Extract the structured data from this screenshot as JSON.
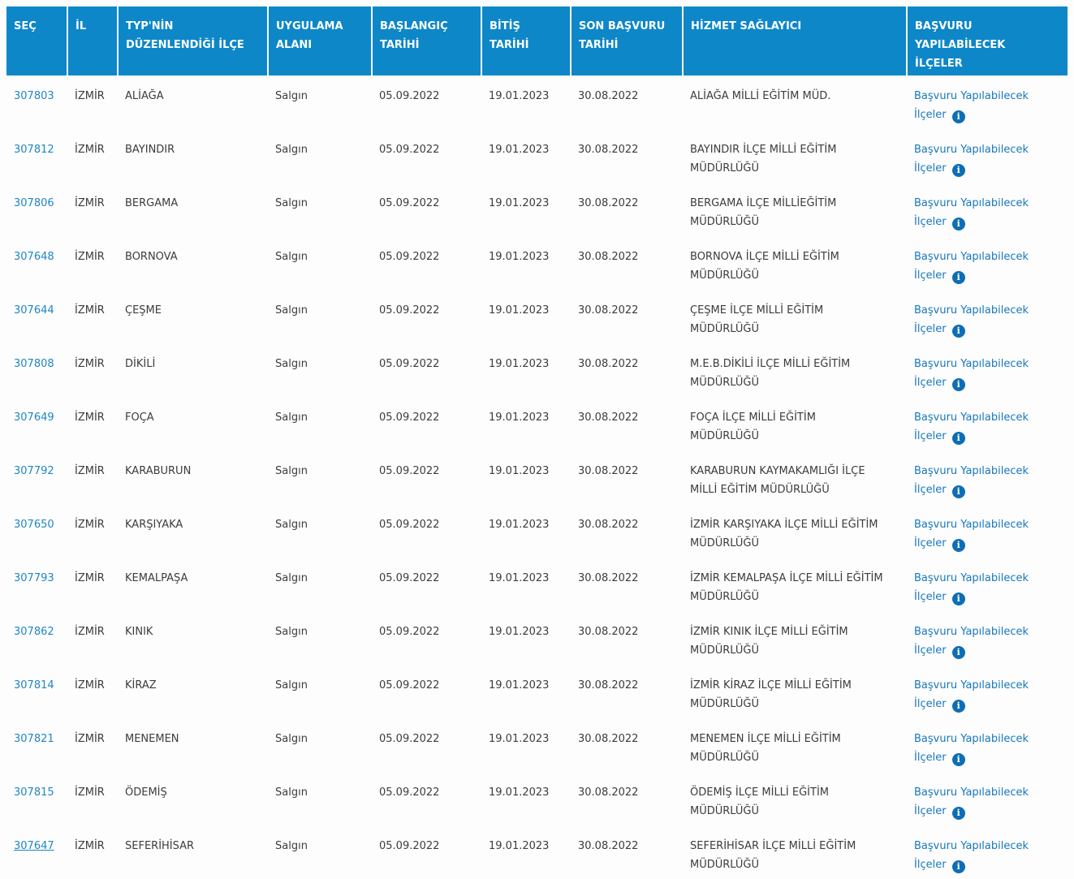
{
  "colors": {
    "header_bg": "#0d87c8",
    "header_text": "#ffffff",
    "body_text": "#3c3c3c",
    "id_link": "#1f86c5",
    "apply_link": "#1878ba",
    "info_icon_bg": "#0d6eb5"
  },
  "table": {
    "headers": [
      "SEÇ",
      "İL",
      "TYP'NİN\nDÜZENLENDİĞİ İLÇE",
      "UYGULAMA\nALANI",
      "BAŞLANGIÇ\nTARİHİ",
      "BİTİŞ\nTARİHİ",
      "SON BAŞVURU\nTARİHİ",
      "HİZMET SAĞLAYICI",
      "BAŞVURU\nYAPILABİLECEK\nİLÇELER"
    ],
    "link_label": "Başvuru Yapılabilecek İlçeler",
    "info_icon_glyph": "i",
    "rows": [
      {
        "id": "307803",
        "il": "İZMİR",
        "ilce": "ALİAĞA",
        "alan": "Salgın",
        "baslangic": "05.09.2022",
        "bitis": "19.01.2023",
        "son_basvuru": "30.08.2022",
        "saglayici": "ALİAĞA MİLLİ EĞİTİM MÜD.",
        "underlined": false
      },
      {
        "id": "307812",
        "il": "İZMİR",
        "ilce": "BAYINDIR",
        "alan": "Salgın",
        "baslangic": "05.09.2022",
        "bitis": "19.01.2023",
        "son_basvuru": "30.08.2022",
        "saglayici": "BAYINDIR İLÇE MİLLİ EĞİTİM MÜDÜRLÜĞÜ",
        "underlined": false
      },
      {
        "id": "307806",
        "il": "İZMİR",
        "ilce": "BERGAMA",
        "alan": "Salgın",
        "baslangic": "05.09.2022",
        "bitis": "19.01.2023",
        "son_basvuru": "30.08.2022",
        "saglayici": "BERGAMA İLÇE MİLLİEĞİTİM MÜDÜRLÜĞÜ",
        "underlined": false
      },
      {
        "id": "307648",
        "il": "İZMİR",
        "ilce": "BORNOVA",
        "alan": "Salgın",
        "baslangic": "05.09.2022",
        "bitis": "19.01.2023",
        "son_basvuru": "30.08.2022",
        "saglayici": "BORNOVA İLÇE MİLLİ EĞİTİM MÜDÜRLÜĞÜ",
        "underlined": false
      },
      {
        "id": "307644",
        "il": "İZMİR",
        "ilce": "ÇEŞME",
        "alan": "Salgın",
        "baslangic": "05.09.2022",
        "bitis": "19.01.2023",
        "son_basvuru": "30.08.2022",
        "saglayici": "ÇEŞME İLÇE MİLLİ EĞİTİM MÜDÜRLÜĞÜ",
        "underlined": false
      },
      {
        "id": "307808",
        "il": "İZMİR",
        "ilce": "DİKİLİ",
        "alan": "Salgın",
        "baslangic": "05.09.2022",
        "bitis": "19.01.2023",
        "son_basvuru": "30.08.2022",
        "saglayici": "M.E.B.DİKİLİ İLÇE MİLLİ EĞİTİM MÜDÜRLÜĞÜ",
        "underlined": false
      },
      {
        "id": "307649",
        "il": "İZMİR",
        "ilce": "FOÇA",
        "alan": "Salgın",
        "baslangic": "05.09.2022",
        "bitis": "19.01.2023",
        "son_basvuru": "30.08.2022",
        "saglayici": "FOÇA İLÇE MİLLİ EĞİTİM MÜDÜRLÜĞÜ",
        "underlined": false
      },
      {
        "id": "307792",
        "il": "İZMİR",
        "ilce": "KARABURUN",
        "alan": "Salgın",
        "baslangic": "05.09.2022",
        "bitis": "19.01.2023",
        "son_basvuru": "30.08.2022",
        "saglayici": "KARABURUN KAYMAKAMLIĞI İLÇE MİLLİ EĞİTİM MÜDÜRLÜĞÜ",
        "underlined": false
      },
      {
        "id": "307650",
        "il": "İZMİR",
        "ilce": "KARŞIYAKA",
        "alan": "Salgın",
        "baslangic": "05.09.2022",
        "bitis": "19.01.2023",
        "son_basvuru": "30.08.2022",
        "saglayici": "İZMİR KARŞIYAKA İLÇE MİLLİ EĞİTİM MÜDÜRLÜĞÜ",
        "underlined": false
      },
      {
        "id": "307793",
        "il": "İZMİR",
        "ilce": "KEMALPAŞA",
        "alan": "Salgın",
        "baslangic": "05.09.2022",
        "bitis": "19.01.2023",
        "son_basvuru": "30.08.2022",
        "saglayici": "İZMİR KEMALPAŞA İLÇE MİLLİ EĞİTİM MÜDÜRLÜĞÜ",
        "underlined": false
      },
      {
        "id": "307862",
        "il": "İZMİR",
        "ilce": "KINIK",
        "alan": "Salgın",
        "baslangic": "05.09.2022",
        "bitis": "19.01.2023",
        "son_basvuru": "30.08.2022",
        "saglayici": "İZMİR KINIK İLÇE MİLLİ EĞİTİM MÜDÜRLÜĞÜ",
        "underlined": false
      },
      {
        "id": "307814",
        "il": "İZMİR",
        "ilce": "KİRAZ",
        "alan": "Salgın",
        "baslangic": "05.09.2022",
        "bitis": "19.01.2023",
        "son_basvuru": "30.08.2022",
        "saglayici": "İZMİR KİRAZ İLÇE MİLLİ EĞİTİM MÜDÜRLÜĞÜ",
        "underlined": false
      },
      {
        "id": "307821",
        "il": "İZMİR",
        "ilce": "MENEMEN",
        "alan": "Salgın",
        "baslangic": "05.09.2022",
        "bitis": "19.01.2023",
        "son_basvuru": "30.08.2022",
        "saglayici": "MENEMEN İLÇE MİLLİ EĞİTİM MÜDÜRLÜĞÜ",
        "underlined": false
      },
      {
        "id": "307815",
        "il": "İZMİR",
        "ilce": "ÖDEMİŞ",
        "alan": "Salgın",
        "baslangic": "05.09.2022",
        "bitis": "19.01.2023",
        "son_basvuru": "30.08.2022",
        "saglayici": "ÖDEMİŞ İLÇE MİLLİ EĞİTİM MÜDÜRLÜĞÜ",
        "underlined": false
      },
      {
        "id": "307647",
        "il": "İZMİR",
        "ilce": "SEFERİHİSAR",
        "alan": "Salgın",
        "baslangic": "05.09.2022",
        "bitis": "19.01.2023",
        "son_basvuru": "30.08.2022",
        "saglayici": "SEFERİHİSAR İLÇE MİLLİ EĞİTİM MÜDÜRLÜĞÜ",
        "underlined": true
      }
    ]
  }
}
